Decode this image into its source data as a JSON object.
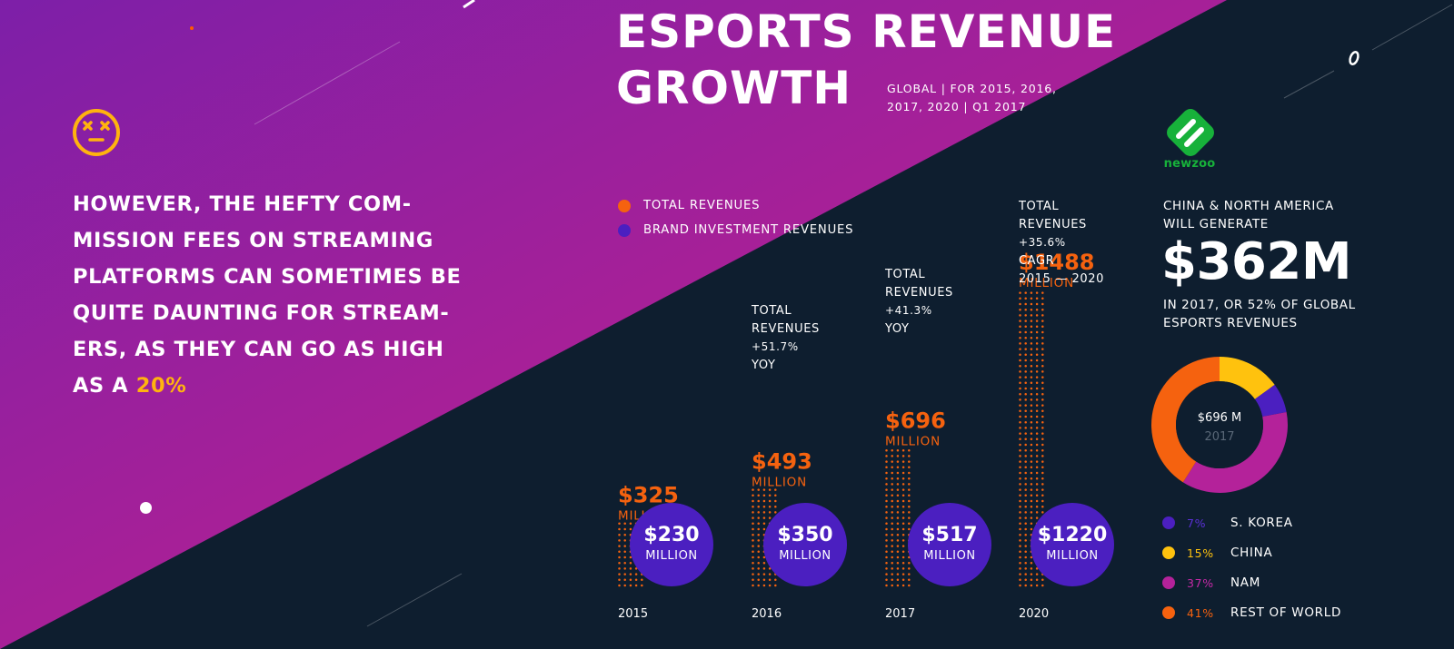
{
  "colors": {
    "bg_dark": "#0e1e2f",
    "purple_grad_start": "#7d1fa8",
    "magenta_grad_end": "#c2238f",
    "total": "#f5620f",
    "brand": "#4b1fc0",
    "highlight": "#ffb30f",
    "korea": "#4b1fc0",
    "china": "#ffc20e",
    "nam": "#b4229a",
    "rest": "#f5620f",
    "newzoo": "#17b13a"
  },
  "left": {
    "icon": "dizzy-face-icon",
    "quote_text": "HOWEVER, THE HEFTY COM- MISSION FEES ON STREAMING PLATFORMS CAN SOMETIMES BE QUITE DAUNTING FOR STREAM- ERS, AS THEY CAN GO AS HIGH AS A",
    "quote_lines": [
      "HOWEVER, THE HEFTY COM-",
      "MISSION FEES ON STREAMING",
      "PLATFORMS CAN SOMETIMES BE",
      "QUITE DAUNTING FOR STREAM-",
      "ERS, AS THEY CAN GO AS HIGH"
    ],
    "quote_last_prefix": "AS A",
    "quote_highlight": "20%"
  },
  "header": {
    "title_line1": "ESPORTS REVENUE",
    "title_line2": "GROWTH",
    "subtitle_line1": "GLOBAL | FOR 2015, 2016,",
    "subtitle_line2": "2017, 2020 | Q1 2017"
  },
  "logo": {
    "icon": "newzoo-logo-icon",
    "text": "newzoo"
  },
  "chart_data": [
    {
      "type": "bar",
      "title": "ESPORTS REVENUE GROWTH",
      "subtitle": "GLOBAL | FOR 2015, 2016, 2017, 2020 | Q1 2017",
      "categories": [
        "2015",
        "2016",
        "2017",
        "2020"
      ],
      "series": [
        {
          "name": "TOTAL REVENUES",
          "values": [
            325,
            493,
            696,
            1488
          ],
          "value_labels": [
            "$325",
            "$493",
            "$696",
            "$1488"
          ],
          "unit_label": "MILLION"
        },
        {
          "name": "BRAND INVESTMENT REVENUES",
          "values": [
            230,
            350,
            517,
            1220
          ],
          "value_labels": [
            "$230",
            "$350",
            "$517",
            "$1220"
          ],
          "unit_label": "MILLION"
        }
      ],
      "annotations": [
        {
          "category": "2016",
          "lines": [
            "TOTAL",
            "REVENUES",
            "+51.7%",
            "YOY"
          ]
        },
        {
          "category": "2017",
          "lines": [
            "TOTAL",
            "REVENUES",
            "+41.3%",
            "YOY"
          ]
        },
        {
          "category": "2020",
          "lines": [
            "TOTAL",
            "REVENUES",
            "+35.6%",
            "CAGR",
            "2015 — 2020"
          ]
        }
      ],
      "legend": "top-left",
      "grid": false
    },
    {
      "type": "pie",
      "center_value": "$696 M",
      "center_year": "2017",
      "labels": [
        "S. KOREA",
        "CHINA",
        "NAM",
        "REST OF WORLD"
      ],
      "values": [
        7,
        15,
        37,
        41
      ],
      "pct_labels": [
        "7%",
        "15%",
        "37%",
        "41%"
      ]
    }
  ],
  "right": {
    "headline_line1": "CHINA & NORTH AMERICA",
    "headline_line2": "WILL GENERATE",
    "big_number": "$362M",
    "caption_line1": "IN 2017, OR 52% OF GLOBAL",
    "caption_line2": "ESPORTS REVENUES"
  }
}
